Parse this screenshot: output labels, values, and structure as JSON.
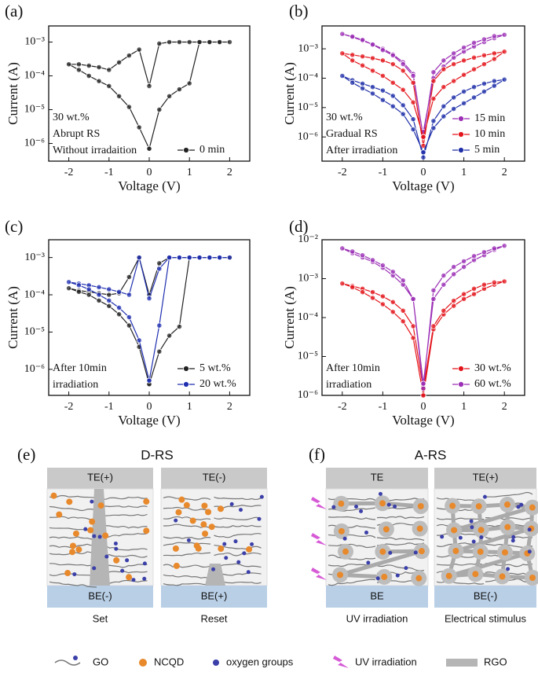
{
  "chart_data": [
    {
      "type": "line",
      "label": "(a)",
      "x_label": "Voltage (V)",
      "y_label": "Current (A)",
      "log_y": true,
      "legend": "lower right",
      "annotations": [
        "30 wt.%",
        "Abrupt RS",
        "Without irradaition"
      ],
      "xlim": [
        -2.5,
        2.5
      ],
      "xticks": [
        -2,
        -1,
        0,
        1,
        2
      ],
      "ylim": [
        3e-07,
        0.003
      ],
      "yticks": [
        {
          "value": 1e-06,
          "label": "10⁻⁶"
        },
        {
          "value": 1e-05,
          "label": "10⁻⁵"
        },
        {
          "value": 0.0001,
          "label": "10⁻⁴"
        },
        {
          "value": 0.001,
          "label": "10⁻³"
        }
      ],
      "x": [
        0,
        0.25,
        0.5,
        0.75,
        1,
        1.25,
        1.5,
        1.75,
        2,
        1.75,
        1.5,
        1.25,
        1,
        0.75,
        0.5,
        0.25,
        0,
        -0.25,
        -0.5,
        -0.75,
        -1,
        -1.25,
        -1.5,
        -1.75,
        -2,
        -1.75,
        -1.5,
        -1.25,
        -1,
        -0.75,
        -0.5,
        -0.25,
        0
      ],
      "series": [
        {
          "name": "0 min",
          "color": "#222222",
          "values": [
            7e-07,
            1e-05,
            2.5e-05,
            4e-05,
            6e-05,
            0.001,
            0.001,
            0.001,
            0.001,
            0.001,
            0.001,
            0.001,
            0.001,
            0.001,
            0.001,
            0.0009,
            5e-05,
            0.0006,
            0.0004,
            0.00025,
            0.00015,
            0.00018,
            0.0002,
            0.00022,
            0.00022,
            0.00015,
            0.0001,
            7e-05,
            5e-05,
            2.5e-05,
            1.2e-05,
            3e-06,
            7e-07
          ]
        }
      ]
    },
    {
      "type": "line",
      "label": "(b)",
      "x_label": "Voltage (V)",
      "y_label": "Current (A)",
      "log_y": true,
      "legend": "lower right",
      "annotations": [
        "30 wt.%",
        "Gradual RS",
        "After irradiation"
      ],
      "xlim": [
        -2.5,
        2.5
      ],
      "xticks": [
        -2,
        -1,
        0,
        1,
        2
      ],
      "ylim": [
        1.5e-07,
        0.006
      ],
      "yticks": [
        {
          "value": 1e-06,
          "label": "10⁻⁶"
        },
        {
          "value": 1e-05,
          "label": "10⁻⁵"
        },
        {
          "value": 0.0001,
          "label": "10⁻⁴"
        },
        {
          "value": 0.001,
          "label": "10⁻³"
        }
      ],
      "x": [
        0,
        0.25,
        0.5,
        0.75,
        1,
        1.25,
        1.5,
        1.75,
        2,
        1.75,
        1.5,
        1.25,
        1,
        0.75,
        0.5,
        0.25,
        0,
        -0.25,
        -0.5,
        -0.75,
        -1,
        -1.25,
        -1.5,
        -1.75,
        -2,
        -1.75,
        -1.5,
        -1.25,
        -1,
        -0.75,
        -0.5,
        -0.25,
        0
      ],
      "series": [
        {
          "name": "15 min",
          "color": "#9b2fb5",
          "values": [
            1.5e-06,
            0.0001,
            0.00025,
            0.0005,
            0.0008,
            0.0012,
            0.0017,
            0.0023,
            0.003,
            0.0027,
            0.0021,
            0.0016,
            0.0011,
            0.0007,
            0.0004,
            0.00016,
            1e-06,
            0.00014,
            0.00035,
            0.00065,
            0.001,
            0.0014,
            0.0019,
            0.0025,
            0.0032,
            0.0026,
            0.002,
            0.0014,
            0.0009,
            0.0006,
            0.0003,
            0.00012,
            1e-06
          ]
        },
        {
          "name": "10 min",
          "color": "#e3141b",
          "values": [
            1e-06,
            2e-05,
            5e-05,
            8e-05,
            0.00013,
            0.0002,
            0.0003,
            0.00045,
            0.0008,
            0.0007,
            0.0006,
            0.0005,
            0.0004,
            0.0003,
            0.0002,
            8e-05,
            5e-07,
            7e-05,
            0.00018,
            0.0003,
            0.0004,
            0.00048,
            0.00055,
            0.00062,
            0.0007,
            0.0004,
            0.00027,
            0.00018,
            0.00012,
            7e-05,
            4e-05,
            1.5e-05,
            1e-06
          ]
        },
        {
          "name": "5 min",
          "color": "#1f2fa8",
          "values": [
            3e-07,
            2e-06,
            5e-06,
            9e-06,
            1.4e-05,
            2.2e-05,
            3.5e-05,
            5.5e-05,
            9e-05,
            8e-05,
            6.5e-05,
            5e-05,
            3.5e-05,
            2.2e-05,
            1.1e-05,
            3.5e-06,
            2e-07,
            4e-06,
            1.2e-05,
            2.5e-05,
            3.8e-05,
            5e-05,
            6.5e-05,
            8.5e-05,
            0.00012,
            7e-05,
            4.5e-05,
            3e-05,
            1.8e-05,
            1.1e-05,
            6e-06,
            1.8e-06,
            3e-07
          ]
        }
      ]
    },
    {
      "type": "line",
      "label": "(c)",
      "x_label": "Voltage (V)",
      "y_label": "Current (A)",
      "log_y": true,
      "legend": "lower right",
      "annotations": [
        "After 10min",
        "irradiation"
      ],
      "xlim": [
        -2.5,
        2.5
      ],
      "xticks": [
        -2,
        -1,
        0,
        1,
        2
      ],
      "ylim": [
        2e-07,
        0.003
      ],
      "yticks": [
        {
          "value": 1e-06,
          "label": "10⁻⁶"
        },
        {
          "value": 1e-05,
          "label": "10⁻⁵"
        },
        {
          "value": 0.0001,
          "label": "10⁻⁴"
        },
        {
          "value": 0.001,
          "label": "10⁻³"
        }
      ],
      "x": [
        0,
        0.25,
        0.5,
        0.75,
        1,
        1.25,
        1.5,
        1.75,
        2,
        1.75,
        1.5,
        1.25,
        1,
        0.75,
        0.5,
        0.25,
        0,
        -0.25,
        -0.5,
        -0.75,
        -1,
        -1.25,
        -1.5,
        -1.75,
        -2,
        -1.75,
        -1.5,
        -1.25,
        -1,
        -0.75,
        -0.5,
        -0.25,
        0
      ],
      "series": [
        {
          "name": "5 wt.%",
          "color": "#222222",
          "values": [
            4e-07,
            3e-06,
            8e-06,
            1.4e-05,
            0.001,
            0.001,
            0.001,
            0.001,
            0.001,
            0.001,
            0.001,
            0.001,
            0.001,
            0.001,
            0.001,
            0.0007,
            0.0001,
            0.001,
            0.0003,
            0.00011,
            0.0001,
            0.00011,
            0.00012,
            0.00013,
            0.00015,
            0.00012,
            0.0001,
            7e-05,
            5e-05,
            3e-05,
            1.5e-05,
            4e-06,
            4e-07
          ]
        },
        {
          "name": "20 wt.%",
          "color": "#1f2fb0",
          "values": [
            5e-07,
            1.5e-05,
            0.001,
            0.001,
            0.001,
            0.001,
            0.001,
            0.001,
            0.001,
            0.001,
            0.001,
            0.001,
            0.001,
            0.001,
            0.001,
            0.0005,
            8e-05,
            0.001,
            0.0001,
            0.00012,
            0.00014,
            0.00016,
            0.00018,
            0.0002,
            0.00022,
            0.00018,
            0.00014,
            0.0001,
            7e-05,
            4.5e-05,
            2.5e-05,
            6e-06,
            5e-07
          ]
        }
      ]
    },
    {
      "type": "line",
      "label": "(d)",
      "x_label": "Voltage (V)",
      "y_label": "Current (A)",
      "log_y": true,
      "legend": "lower right",
      "annotations": [
        "After 10min",
        "irradiation"
      ],
      "xlim": [
        -2.5,
        2.5
      ],
      "xticks": [
        -2,
        -1,
        0,
        1,
        2
      ],
      "ylim": [
        1e-06,
        0.01
      ],
      "yticks": [
        {
          "value": 1e-06,
          "label": "10⁻⁶"
        },
        {
          "value": 1e-05,
          "label": "10⁻⁵"
        },
        {
          "value": 0.0001,
          "label": "10⁻⁴"
        },
        {
          "value": 0.001,
          "label": "10⁻³"
        },
        {
          "value": 0.01,
          "label": "10⁻²"
        }
      ],
      "x": [
        0,
        0.25,
        0.5,
        0.75,
        1,
        1.25,
        1.5,
        1.75,
        2,
        1.75,
        1.5,
        1.25,
        1,
        0.75,
        0.5,
        0.25,
        0,
        -0.25,
        -0.5,
        -0.75,
        -1,
        -1.25,
        -1.5,
        -1.75,
        -2,
        -1.75,
        -1.5,
        -1.25,
        -1,
        -0.75,
        -0.5,
        -0.25,
        0
      ],
      "series": [
        {
          "name": "30 wt.%",
          "color": "#e3141b",
          "values": [
            1e-06,
            5e-05,
            0.00012,
            0.0002,
            0.0003,
            0.0004,
            0.00055,
            0.0007,
            0.00085,
            0.0008,
            0.0007,
            0.00055,
            0.0004,
            0.00027,
            0.00015,
            6e-05,
            1.5e-06,
            6e-05,
            0.00015,
            0.00025,
            0.00035,
            0.00045,
            0.00055,
            0.00065,
            0.00075,
            0.0006,
            0.00045,
            0.00032,
            0.00022,
            0.00014,
            8e-05,
            3e-05,
            1e-06
          ]
        },
        {
          "name": "60 wt.%",
          "color": "#9b2fb5",
          "values": [
            2e-06,
            0.0003,
            0.0007,
            0.0013,
            0.002,
            0.003,
            0.004,
            0.0055,
            0.007,
            0.006,
            0.0048,
            0.0038,
            0.0028,
            0.002,
            0.0012,
            0.0005,
            1.5e-06,
            0.0003,
            0.0007,
            0.0012,
            0.0019,
            0.0027,
            0.0035,
            0.0045,
            0.006,
            0.005,
            0.004,
            0.003,
            0.0022,
            0.0015,
            0.0009,
            0.0003,
            2e-06
          ]
        }
      ]
    }
  ],
  "diagrams": {
    "panel_e": {
      "label": "(e)",
      "title": "D-RS",
      "cells": [
        {
          "top": "TE(+)",
          "bottom": "BE(-)",
          "caption": "Set"
        },
        {
          "top": "TE(-)",
          "bottom": "BE(+)",
          "caption": "Reset"
        }
      ]
    },
    "panel_f": {
      "label": "(f)",
      "title": "A-RS",
      "cells": [
        {
          "top": "TE",
          "bottom": "BE",
          "caption": "UV irradiation"
        },
        {
          "top": "TE(+)",
          "bottom": "BE(-)",
          "caption": "Electrical stimulus"
        }
      ]
    },
    "legend": [
      "GO",
      "NCQD",
      "oxygen groups",
      "UV irradiation",
      "RGO"
    ]
  }
}
